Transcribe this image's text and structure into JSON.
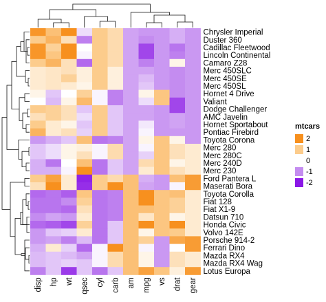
{
  "chart_data": {
    "type": "heatmap",
    "title": "",
    "xlabel": "",
    "ylabel": "",
    "columns": [
      "disp",
      "hp",
      "wt",
      "qsec",
      "cyl",
      "carb",
      "am",
      "mpg",
      "vs",
      "drat",
      "gear"
    ],
    "rows": [
      "Chrysler Imperial",
      "Duster 360",
      "Cadillac Fleetwood",
      "Lincoln Continental",
      "Camaro Z28",
      "Merc 450SLC",
      "Merc 450SE",
      "Merc 450SL",
      "Hornet 4 Drive",
      "Valiant",
      "Dodge Challenger",
      "AMC Javelin",
      "Hornet Sportabout",
      "Pontiac Firebird",
      "Toyota Corona",
      "Merc 280",
      "Merc 280C",
      "Merc 240D",
      "Merc 230",
      "Ford Pantera L",
      "Maserati Bora",
      "Toyota Corolla",
      "Fiat 128",
      "Fiat X1-9",
      "Datsun 710",
      "Honda Civic",
      "Volvo 142E",
      "Porsche 914-2",
      "Ferrari Dino",
      "Mazda RX4",
      "Mazda RX4 Wag",
      "Lotus Europa"
    ],
    "values": [
      [
        1.9,
        1.2,
        2.1,
        -0.3,
        1.0,
        0.7,
        -0.8,
        -0.9,
        -0.9,
        -0.7,
        -0.9
      ],
      [
        1.0,
        1.4,
        0.6,
        -1.1,
        1.0,
        0.7,
        -0.8,
        -1.0,
        -0.9,
        -0.7,
        -0.9
      ],
      [
        1.9,
        0.9,
        2.1,
        0.0,
        1.0,
        0.7,
        -0.8,
        -1.6,
        -0.9,
        -1.2,
        -0.9
      ],
      [
        1.9,
        1.1,
        2.3,
        -0.1,
        1.0,
        0.7,
        -0.8,
        -1.6,
        -0.9,
        -1.1,
        -0.9
      ],
      [
        1.0,
        1.4,
        0.6,
        -1.3,
        1.0,
        0.7,
        -0.8,
        -1.1,
        -0.9,
        0.2,
        -0.9
      ],
      [
        0.4,
        0.5,
        0.6,
        0.3,
        1.0,
        0.3,
        -0.8,
        -0.8,
        -0.9,
        -1.0,
        -0.9
      ],
      [
        0.4,
        0.5,
        0.9,
        0.3,
        1.0,
        0.3,
        -0.8,
        -0.6,
        -0.9,
        -1.0,
        -0.9
      ],
      [
        0.4,
        0.5,
        0.4,
        0.2,
        1.0,
        0.3,
        -0.8,
        -0.5,
        -0.9,
        -1.0,
        -0.9
      ],
      [
        0.2,
        -0.5,
        -0.0,
        0.9,
        -0.1,
        -1.1,
        -0.8,
        0.2,
        1.1,
        -1.0,
        -0.9
      ],
      [
        -0.0,
        -0.6,
        0.2,
        1.3,
        -0.1,
        -1.1,
        -0.8,
        -0.3,
        1.1,
        -1.6,
        -0.9
      ],
      [
        1.0,
        0.9,
        0.6,
        -0.5,
        1.0,
        -0.5,
        -0.8,
        -0.8,
        -0.9,
        -1.6,
        -0.9
      ],
      [
        0.6,
        0.9,
        0.6,
        -0.3,
        1.0,
        -0.5,
        -0.8,
        -0.8,
        -0.9,
        -0.8,
        -0.9
      ],
      [
        1.0,
        0.4,
        0.2,
        -0.5,
        1.0,
        -0.5,
        -0.8,
        -0.2,
        -0.9,
        -0.8,
        -0.9
      ],
      [
        1.4,
        0.4,
        0.6,
        -0.4,
        1.0,
        -0.5,
        -0.8,
        -0.1,
        -0.9,
        -0.9,
        -0.9
      ],
      [
        -0.9,
        -0.7,
        -0.5,
        1.2,
        -1.2,
        -1.1,
        -0.8,
        0.2,
        1.1,
        0.2,
        -0.9
      ],
      [
        -0.5,
        -0.3,
        0.2,
        0.3,
        -0.1,
        0.7,
        -0.8,
        -0.1,
        1.1,
        0.6,
        0.4
      ],
      [
        -0.5,
        -0.3,
        0.2,
        0.6,
        -0.1,
        0.7,
        -0.8,
        -0.4,
        1.1,
        0.6,
        0.4
      ],
      [
        -0.7,
        -1.2,
        -0.0,
        1.2,
        -1.2,
        -0.5,
        -0.8,
        0.7,
        1.1,
        0.2,
        0.4
      ],
      [
        -0.7,
        -0.7,
        -0.1,
        2.8,
        -1.2,
        -0.5,
        -0.8,
        0.4,
        1.1,
        0.6,
        0.4
      ],
      [
        1.0,
        1.7,
        0.4,
        -1.9,
        1.0,
        0.7,
        1.2,
        -0.7,
        -0.9,
        1.2,
        1.8
      ],
      [
        0.6,
        2.7,
        0.4,
        -1.8,
        1.0,
        3.2,
        1.2,
        -0.8,
        -0.9,
        -0.1,
        1.8
      ],
      [
        -1.3,
        -1.2,
        -1.4,
        1.1,
        -1.2,
        -1.1,
        1.2,
        2.3,
        1.1,
        1.2,
        0.4
      ],
      [
        -1.2,
        -1.2,
        -1.0,
        0.9,
        -1.2,
        -1.1,
        1.2,
        2.0,
        1.1,
        0.9,
        0.4
      ],
      [
        -1.2,
        -1.2,
        -1.3,
        0.6,
        -1.2,
        -1.1,
        1.2,
        1.2,
        1.1,
        0.9,
        0.4
      ],
      [
        -1.0,
        -0.8,
        -0.9,
        0.4,
        -1.2,
        -1.1,
        1.2,
        0.5,
        1.1,
        0.2,
        0.4
      ],
      [
        -1.3,
        -1.4,
        -1.6,
        0.9,
        -1.2,
        -0.5,
        1.2,
        2.0,
        1.1,
        2.5,
        0.4
      ],
      [
        -0.9,
        -0.5,
        -0.4,
        0.4,
        -1.2,
        -0.5,
        1.2,
        0.2,
        1.1,
        1.0,
        0.4
      ],
      [
        -0.9,
        -0.8,
        -1.1,
        -0.6,
        -1.2,
        -0.5,
        1.2,
        0.9,
        -0.9,
        1.6,
        1.8
      ],
      [
        -0.7,
        0.4,
        -0.4,
        -1.3,
        -0.1,
        2.0,
        1.2,
        -0.1,
        -0.9,
        0.0,
        1.8
      ],
      [
        -0.6,
        -0.5,
        -0.6,
        -0.8,
        -0.1,
        0.7,
        1.2,
        0.2,
        -0.9,
        0.6,
        0.4
      ],
      [
        -0.6,
        -0.5,
        -0.4,
        -0.5,
        -0.1,
        0.7,
        1.2,
        0.2,
        -0.9,
        0.6,
        0.4
      ],
      [
        -1.1,
        -0.5,
        -1.7,
        -0.5,
        -1.2,
        -0.5,
        1.2,
        1.7,
        1.1,
        0.3,
        1.8
      ]
    ],
    "colorscale": {
      "low": "#8a17e6",
      "mid_low": "#c48cf0",
      "mid": "#ffffff",
      "mid_high": "#fccc8c",
      "high": "#f7901e",
      "range": [
        -2,
        2
      ]
    },
    "legend": {
      "title": "mtcars",
      "ticks": [
        "2",
        "1",
        "0",
        "-1",
        "-2"
      ],
      "position": "right"
    },
    "dendrogram_rows": "left",
    "dendrogram_columns": "top"
  }
}
